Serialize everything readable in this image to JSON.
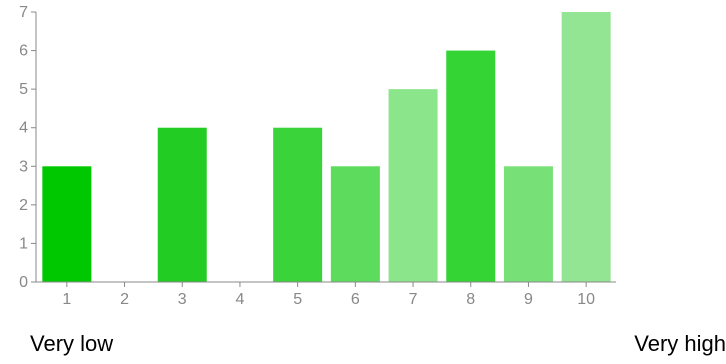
{
  "chart_data": {
    "type": "bar",
    "categories": [
      "1",
      "2",
      "3",
      "4",
      "5",
      "6",
      "7",
      "8",
      "9",
      "10"
    ],
    "values": [
      3,
      0,
      4,
      0,
      4,
      3,
      5,
      6,
      3,
      7
    ],
    "bar_colors": [
      "#00c800",
      "#22cc22",
      "#22cc22",
      "#33d033",
      "#3ad43a",
      "#5cdb5c",
      "#8be58b",
      "#33d433",
      "#77e177",
      "#93e593"
    ],
    "ylim": [
      0,
      7
    ],
    "yticks": [
      "0",
      "1",
      "2",
      "3",
      "4",
      "5",
      "6",
      "7"
    ],
    "axis_color": "#888888",
    "grid": false,
    "title": "",
    "xlabel": "",
    "ylabel": ""
  },
  "scale_labels": {
    "low": "Very low",
    "high": "Very high"
  }
}
